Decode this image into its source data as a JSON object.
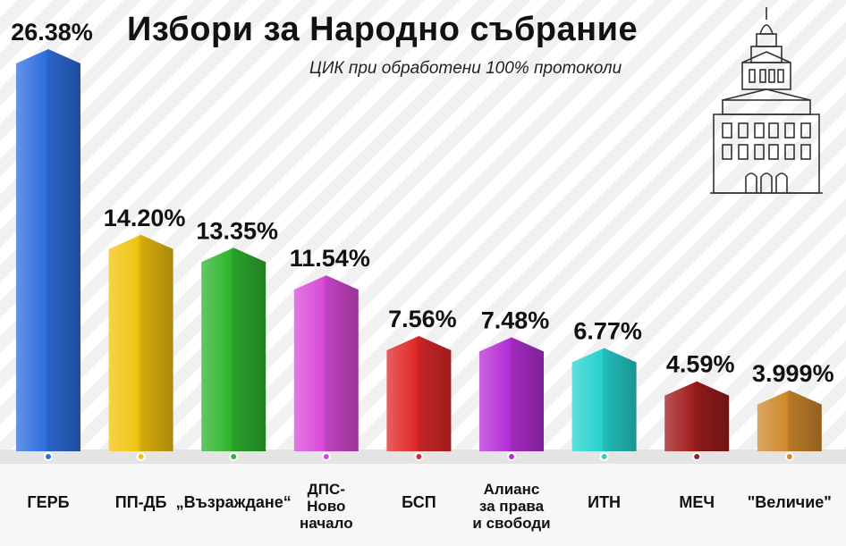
{
  "title": "Избори за Народно събрание",
  "subtitle": "ЦИК при обработени 100% протоколи",
  "chart_data": {
    "type": "bar",
    "categories": [
      "ГЕРБ",
      "ПП-ДБ",
      "„Възраждане“",
      "ДПС-Ново начало",
      "БСП",
      "Алианс за права и свободи",
      "ИТН",
      "МЕЧ",
      "\"Величие\""
    ],
    "category_lines": [
      [
        "ГЕРБ"
      ],
      [
        "ПП-ДБ"
      ],
      [
        "„Възраждане“"
      ],
      [
        "ДПС-",
        "Ново",
        "начало"
      ],
      [
        "БСП"
      ],
      [
        "Алианс",
        "за права",
        "и свободи"
      ],
      [
        "ИТН"
      ],
      [
        "МЕЧ"
      ],
      [
        "\"Величие\""
      ]
    ],
    "values": [
      26.38,
      14.2,
      13.35,
      11.54,
      7.56,
      7.48,
      6.77,
      4.59,
      3.999
    ],
    "value_labels": [
      "26.38%",
      "14.20%",
      "13.35%",
      "11.54%",
      "7.56%",
      "7.48%",
      "6.77%",
      "4.59%",
      "3.999%"
    ],
    "colors": [
      "#2f6fe0",
      "#f1c40f",
      "#2fb52f",
      "#d94bd9",
      "#e02a2a",
      "#b62fd6",
      "#27d3d0",
      "#a01c1c",
      "#d08a2c"
    ],
    "ylim": [
      0,
      26.38
    ]
  }
}
